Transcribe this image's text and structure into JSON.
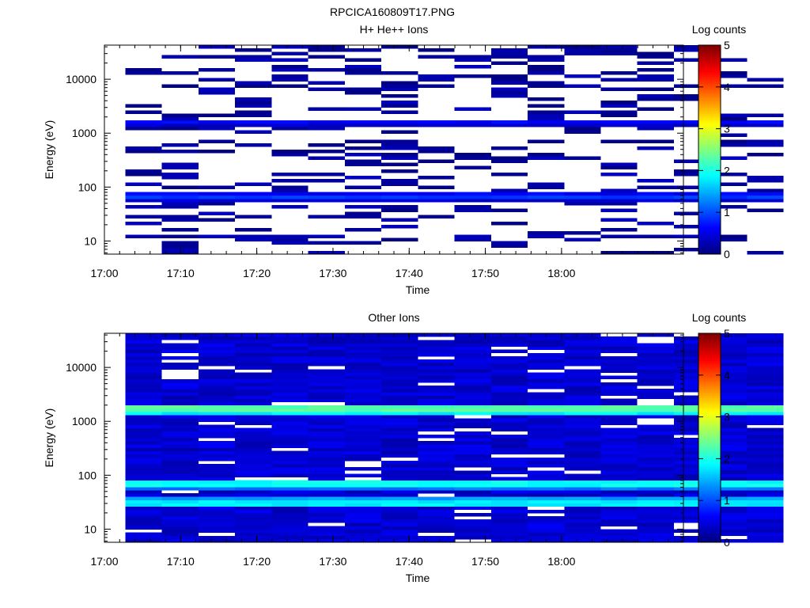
{
  "figure_title": "RPCICA160809T17.PNG",
  "chart_data": [
    {
      "type": "heatmap",
      "title": "H+ He++ Ions",
      "xlabel": "Time",
      "ylabel": "Energy (eV)",
      "x_ticks": [
        "17:00",
        "17:10",
        "17:20",
        "17:30",
        "17:40",
        "17:50",
        "18:00"
      ],
      "x_range": [
        "17:00",
        "18:16"
      ],
      "y_scale": "log",
      "y_ticks": [
        "10",
        "100",
        "1000",
        "10000"
      ],
      "y_range": [
        5.7,
        43000
      ],
      "colorbar_label": "Log counts",
      "colorbar_range": [
        0,
        5
      ],
      "colorbar_ticks": [
        "0",
        "1",
        "2",
        "3",
        "4",
        "5"
      ],
      "colormap": "jet",
      "time_bins_start": "17:02:45",
      "time_bin_minutes": 4.8,
      "time_bin_count": 18,
      "background_level_logcounts": 0.15,
      "sparse_probability": 0.7,
      "persistent_bands": [
        {
          "energy_ev": 1650,
          "level_logcounts": 0.6
        },
        {
          "energy_ev": 1500,
          "level_logcounts": 0.35
        },
        {
          "energy_ev": 72,
          "level_logcounts": 0.6
        },
        {
          "energy_ev": 65,
          "level_logcounts": 0.9
        },
        {
          "energy_ev": 58,
          "level_logcounts": 0.4
        }
      ]
    },
    {
      "type": "heatmap",
      "title": "Other Ions",
      "xlabel": "Time",
      "ylabel": "Energy (eV)",
      "x_ticks": [
        "17:00",
        "17:10",
        "17:20",
        "17:30",
        "17:40",
        "17:50",
        "18:00"
      ],
      "x_range": [
        "17:00",
        "18:16"
      ],
      "y_scale": "log",
      "y_ticks": [
        "10",
        "100",
        "1000",
        "10000"
      ],
      "y_range": [
        5.7,
        43000
      ],
      "colorbar_label": "Log counts",
      "colorbar_range": [
        0,
        5
      ],
      "colorbar_ticks": [
        "0",
        "1",
        "2",
        "3",
        "4",
        "5"
      ],
      "colormap": "jet",
      "time_bins_start": "17:02:45",
      "time_bin_minutes": 4.8,
      "time_bin_count": 18,
      "background_level_logcounts": 0.4,
      "sparse_probability": 0.08,
      "persistent_bands": [
        {
          "energy_ev": 1700,
          "level_logcounts": 2.3
        },
        {
          "energy_ev": 1550,
          "level_logcounts": 1.8
        },
        {
          "energy_ev": 1450,
          "level_logcounts": 1.3
        },
        {
          "energy_ev": 68,
          "level_logcounts": 1.9
        },
        {
          "energy_ev": 62,
          "level_logcounts": 1.2
        },
        {
          "energy_ev": 35,
          "level_logcounts": 1.4
        },
        {
          "energy_ev": 31,
          "level_logcounts": 1.8
        },
        {
          "energy_ev": 28,
          "level_logcounts": 1.5
        }
      ]
    }
  ]
}
